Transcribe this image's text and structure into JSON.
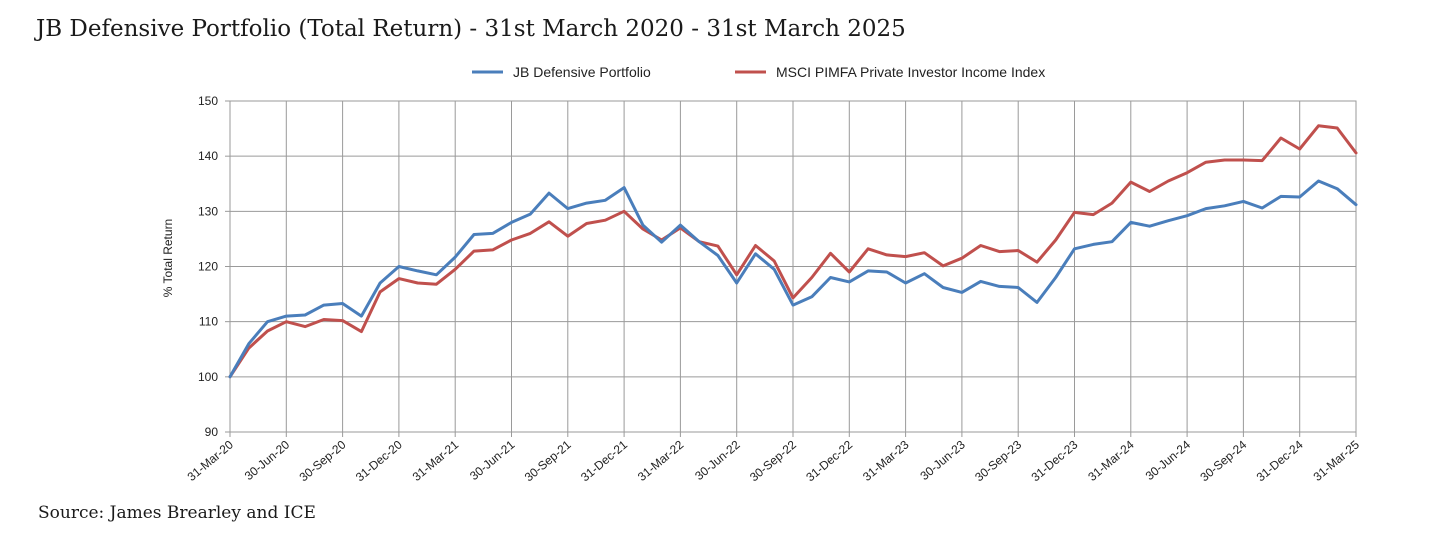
{
  "title": "JB Defensive Portfolio (Total Return) - 31st March 2020 - 31st March 2025",
  "source": "Source: James Brearley and ICE",
  "chart_data": {
    "type": "line",
    "ylabel": "% Total Return",
    "xlabel": "",
    "ylim": [
      90,
      150
    ],
    "yticks": [
      90,
      100,
      110,
      120,
      130,
      140,
      150
    ],
    "grid": true,
    "legend_position": "top",
    "x_tick_labels": [
      "31-Mar-20",
      "30-Jun-20",
      "30-Sep-20",
      "31-Dec-20",
      "31-Mar-21",
      "30-Jun-21",
      "30-Sep-21",
      "31-Dec-21",
      "31-Mar-22",
      "30-Jun-22",
      "30-Sep-22",
      "31-Dec-22",
      "31-Mar-23",
      "30-Jun-23",
      "30-Sep-23",
      "31-Dec-23",
      "31-Mar-24",
      "30-Jun-24",
      "30-Sep-24",
      "31-Dec-24",
      "31-Mar-25"
    ],
    "series": [
      {
        "name": "JB Defensive Portfolio",
        "color": "#4a7ebb",
        "values": [
          100,
          106,
          110,
          111,
          111.2,
          113,
          113.3,
          111,
          117,
          120,
          119.2,
          118.5,
          121.7,
          125.8,
          126,
          128,
          129.5,
          133.3,
          130.5,
          131.5,
          132,
          134.3,
          127.5,
          124.4,
          127.5,
          124.5,
          122,
          117,
          122.3,
          119.5,
          113,
          114.5,
          118,
          117.2,
          119.2,
          119,
          117,
          118.7,
          116.2,
          115.3,
          117.3,
          116.4,
          116.2,
          113.5,
          118,
          123.2,
          124,
          124.5,
          128,
          127.3,
          128.3,
          129.2,
          130.5,
          131,
          131.8,
          130.6,
          132.7,
          132.6,
          135.5,
          134.1,
          131.2
        ]
      },
      {
        "name": "MSCI PIMFA Private Investor Income Index",
        "color": "#c0504d",
        "values": [
          100,
          105.2,
          108.3,
          110,
          109.1,
          110.4,
          110.2,
          108.2,
          115.4,
          117.8,
          117,
          116.8,
          119.5,
          122.8,
          123,
          124.8,
          126,
          128.1,
          125.5,
          127.8,
          128.4,
          130,
          126.8,
          124.8,
          127,
          124.5,
          123.7,
          118.5,
          123.8,
          121,
          114.3,
          118,
          122.4,
          119,
          123.2,
          122.1,
          121.8,
          122.5,
          120.1,
          121.5,
          123.8,
          122.7,
          122.9,
          120.8,
          124.8,
          129.8,
          129.4,
          131.5,
          135.3,
          133.6,
          135.5,
          137,
          138.9,
          139.3,
          139.3,
          139.2,
          143.3,
          141.3,
          145.5,
          145.1,
          140.6
        ]
      }
    ]
  }
}
